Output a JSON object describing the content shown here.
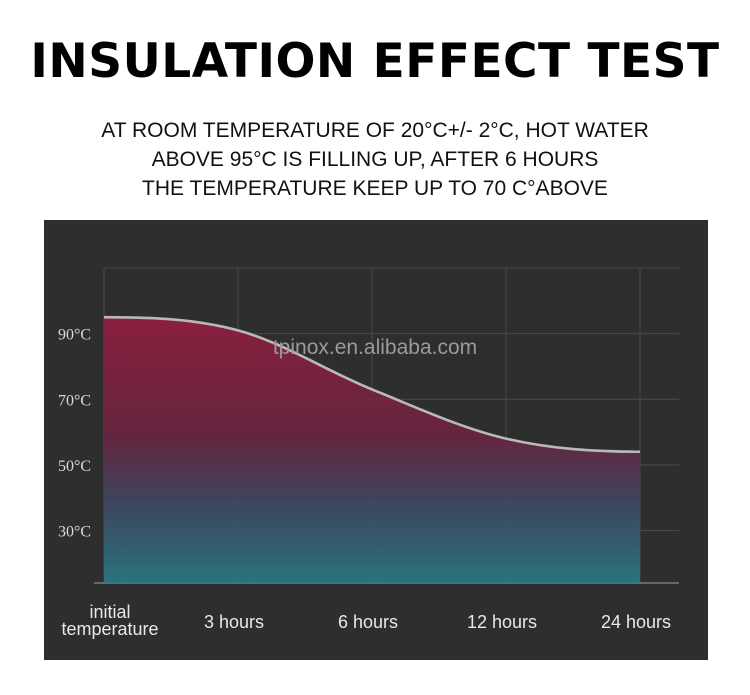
{
  "header": {
    "title": "INSULATION EFFECT TEST",
    "lines": [
      "AT ROOM TEMPERATURE OF 20°C+/- 2°C, HOT WATER",
      "ABOVE 95°C IS FILLING UP, AFTER 6 HOURS",
      "THE TEMPERATURE KEEP UP TO 70 C°ABOVE"
    ]
  },
  "watermark": "tpinox.en.alibaba.com",
  "colors": {
    "panel": "#2e2e2e",
    "curve": "#b9b9b9",
    "fill_top": "#8a1f3e",
    "fill_bottom": "#2f7a86"
  },
  "chart_data": {
    "type": "area",
    "title": "",
    "xlabel": "",
    "ylabel": "",
    "categories": [
      "initial temperature",
      "3 hours",
      "6 hours",
      "12 hours",
      "24 hours"
    ],
    "category_lines": [
      [
        "initial",
        "temperature"
      ],
      [
        "3 hours"
      ],
      [
        "6 hours"
      ],
      [
        "12 hours"
      ],
      [
        "24 hours"
      ]
    ],
    "yticks": [
      30,
      50,
      70,
      90
    ],
    "ytick_labels": [
      "30°C",
      "50°C",
      "70°C",
      "90°C"
    ],
    "ylim": [
      14,
      110
    ],
    "grid": true,
    "series": [
      {
        "values": [
          95,
          91,
          73,
          58,
          54
        ]
      }
    ]
  }
}
